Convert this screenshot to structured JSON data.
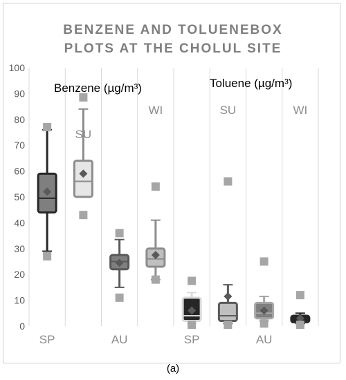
{
  "caption_text": "(a)",
  "chart_data": {
    "type": "box",
    "title_line1": "BENZENE AND TOLUENEBOX",
    "title_line2": "PLOTS AT THE CHOLUL SITE",
    "ylim": [
      0,
      100
    ],
    "yticks": [
      0,
      10,
      20,
      30,
      40,
      50,
      60,
      70,
      80,
      90,
      100
    ],
    "grid": "vertical",
    "annotations": {
      "benzene": "Benzene (µg/m³)",
      "toluene": "Toluene (µg/m³)"
    },
    "season_labels": {
      "top": [
        "SU",
        "WI",
        "SU",
        "WI"
      ],
      "bottom": [
        "SP",
        "AU",
        "SP",
        "AU"
      ]
    },
    "series": [
      {
        "group": "Benzene",
        "season": "SP",
        "min": 29,
        "q1": 44,
        "median": 49.5,
        "q3": 59,
        "max": 76,
        "mean": 52,
        "outliers": [
          27,
          77
        ],
        "fill": "#7f7f7f",
        "stroke": "#262626"
      },
      {
        "group": "Benzene",
        "season": "SU",
        "min": 50,
        "q1": 50,
        "median": 56,
        "q3": 64,
        "max": 84,
        "mean": 59,
        "outliers": [
          43,
          88.5
        ],
        "fill": "#e6e6e6",
        "stroke": "#8c8c8c"
      },
      {
        "group": "Benzene",
        "season": "AU",
        "min": 15,
        "q1": 22,
        "median": 25,
        "q3": 27.5,
        "max": 33.5,
        "mean": 24.5,
        "outliers": [
          11,
          36
        ],
        "fill": "#7f7f7f",
        "stroke": "#595959"
      },
      {
        "group": "Benzene",
        "season": "WI",
        "min": 18,
        "q1": 23,
        "median": 26,
        "q3": 30,
        "max": 41,
        "mean": 27.5,
        "outliers": [
          18,
          54
        ],
        "fill": "#bfbfbf",
        "stroke": "#8c8c8c"
      },
      {
        "group": "Toluene",
        "season": "SP",
        "min": 1,
        "q1": 2,
        "median": 4,
        "q3": 11,
        "max": 13,
        "mean": 6,
        "outliers": [
          0.5,
          17.5
        ],
        "fill": "#262626",
        "stroke": "#d9d9d9"
      },
      {
        "group": "Toluene",
        "season": "SU",
        "min": 1,
        "q1": 2,
        "median": 4,
        "q3": 9,
        "max": 16,
        "mean": 11.5,
        "outliers": [
          0.5,
          56
        ],
        "fill": "#bfbfbf",
        "stroke": "#595959"
      },
      {
        "group": "Toluene",
        "season": "AU",
        "min": 2,
        "q1": 3,
        "median": 5,
        "q3": 9,
        "max": 11.5,
        "mean": 6,
        "outliers": [
          1,
          25
        ],
        "fill": "#7f7f7f",
        "stroke": "#a6a6a6"
      },
      {
        "group": "Toluene",
        "season": "WI",
        "min": 1,
        "q1": 1.5,
        "median": 3,
        "q3": 4,
        "max": 5,
        "mean": 3,
        "outliers": [
          0.5,
          12
        ],
        "fill": "#262626",
        "stroke": "#262626"
      }
    ]
  }
}
